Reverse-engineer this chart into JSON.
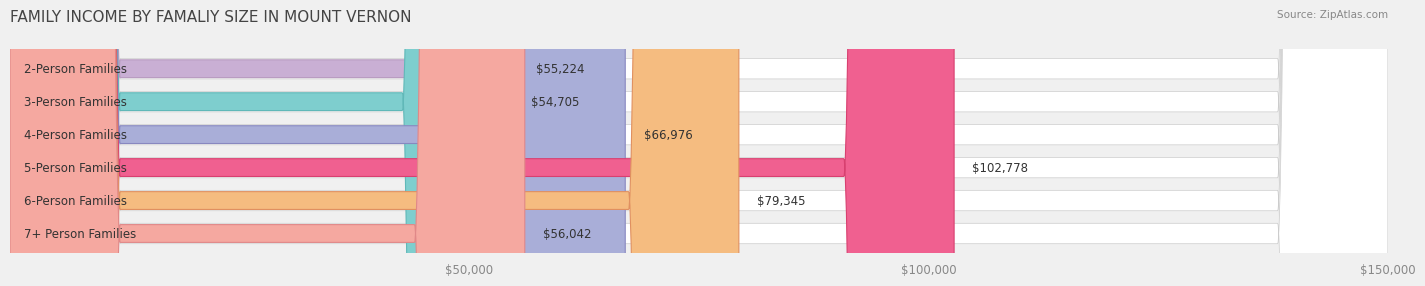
{
  "title": "FAMILY INCOME BY FAMALIY SIZE IN MOUNT VERNON",
  "source": "Source: ZipAtlas.com",
  "categories": [
    "2-Person Families",
    "3-Person Families",
    "4-Person Families",
    "5-Person Families",
    "6-Person Families",
    "7+ Person Families"
  ],
  "values": [
    55224,
    54705,
    66976,
    102778,
    79345,
    56042
  ],
  "labels": [
    "$55,224",
    "$54,705",
    "$66,976",
    "$102,778",
    "$79,345",
    "$56,042"
  ],
  "bar_colors": [
    "#c9afd4",
    "#7ecece",
    "#a9aed8",
    "#f06090",
    "#f5bc80",
    "#f5a8a0"
  ],
  "bar_edge_colors": [
    "#b89ac0",
    "#60b8b8",
    "#8888c0",
    "#d84070",
    "#e09060",
    "#e08888"
  ],
  "xlim": [
    0,
    150000
  ],
  "xticks": [
    0,
    50000,
    100000,
    150000
  ],
  "xtick_labels": [
    "",
    "$50,000",
    "$100,000",
    "$150,000"
  ],
  "background_color": "#f0f0f0",
  "bar_bg_color": "#e8e8e8",
  "title_fontsize": 11,
  "label_fontsize": 8.5,
  "tick_fontsize": 8.5
}
